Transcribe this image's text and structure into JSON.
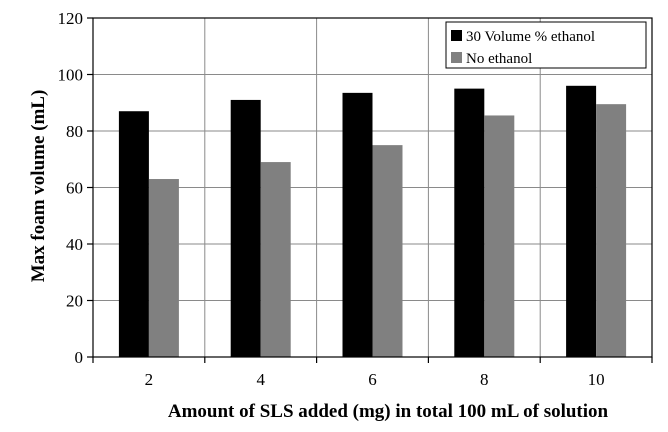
{
  "chart_data": {
    "type": "bar",
    "categories": [
      "2",
      "4",
      "6",
      "8",
      "10"
    ],
    "series": [
      {
        "name": "30 Volume % ethanol",
        "color": "#000000",
        "values": [
          87,
          91,
          93.5,
          95,
          96
        ]
      },
      {
        "name": "No ethanol",
        "color": "#808080",
        "values": [
          63,
          69,
          75,
          85.5,
          89.5
        ]
      }
    ],
    "xlabel": "Amount of SLS added (mg) in total 100 mL of solution",
    "ylabel": "Max foam volume (mL)",
    "ylim": [
      0,
      120
    ],
    "yticks": [
      "0",
      "20",
      "40",
      "60",
      "80",
      "100",
      "120"
    ],
    "grid": true,
    "legend_position": "top-right"
  }
}
